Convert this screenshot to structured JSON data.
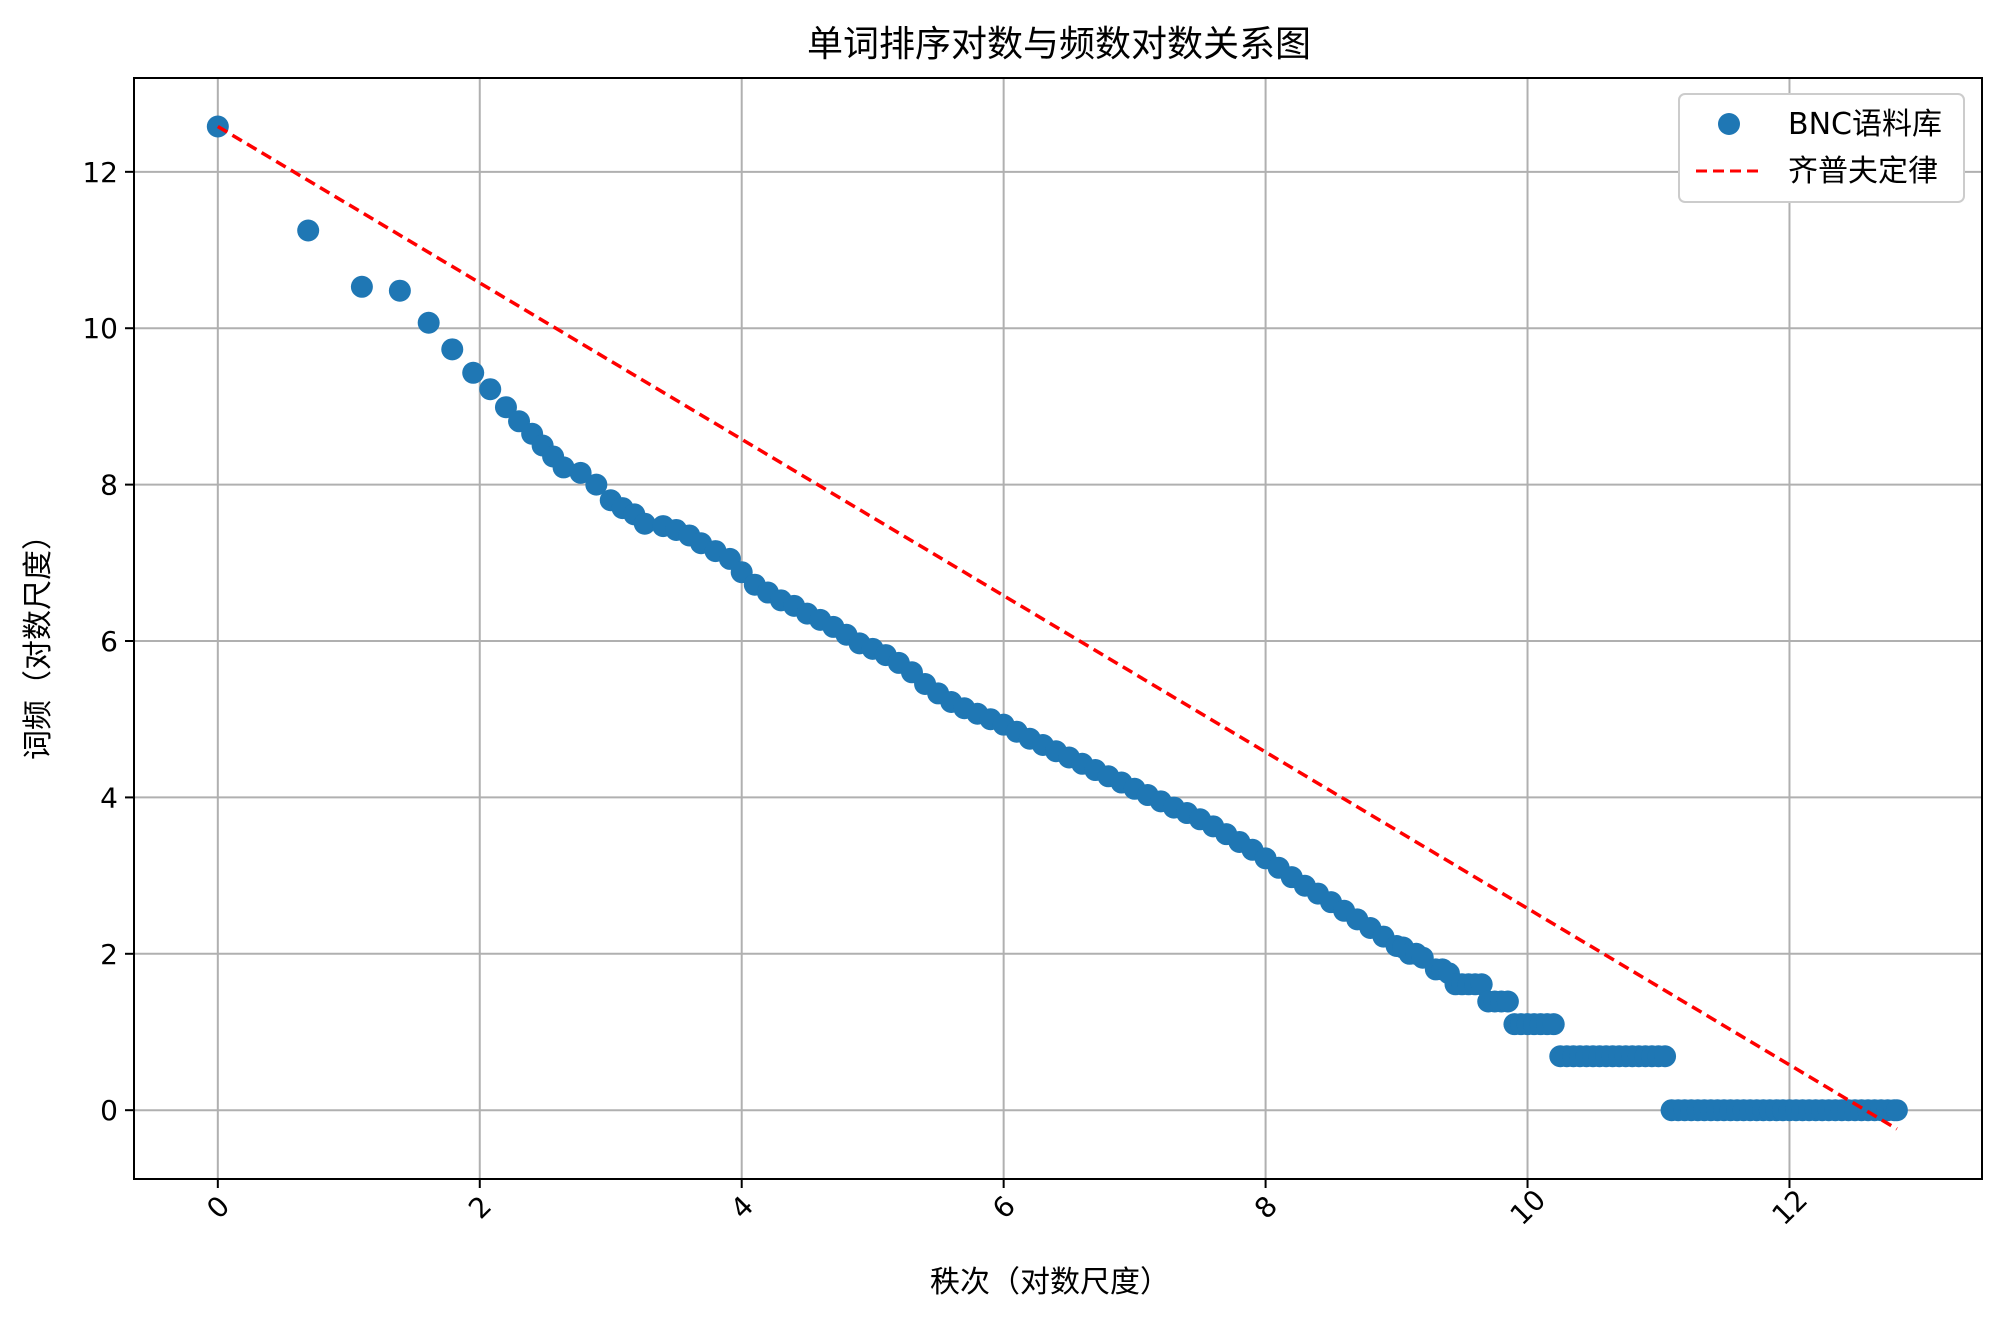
{
  "chart_data": {
    "type": "scatter",
    "title": "单词排序对数与频数对数关系图",
    "xlabel": "秩次（对数尺度）",
    "ylabel": "词频（对数尺度）",
    "xlim": [
      -0.64,
      13.47
    ],
    "ylim": [
      -0.88,
      13.2
    ],
    "x_ticks": [
      0,
      2,
      4,
      6,
      8,
      10,
      12
    ],
    "y_ticks": [
      0,
      2,
      4,
      6,
      8,
      10,
      12
    ],
    "x_tick_rotation": 45,
    "grid": true,
    "legend_position": "top-right",
    "series": [
      {
        "name": "BNC语料库",
        "kind": "scatter",
        "color": "#1f77b4",
        "points": [
          [
            0.0,
            12.58
          ],
          [
            0.69,
            11.25
          ],
          [
            1.1,
            10.53
          ],
          [
            1.39,
            10.48
          ],
          [
            1.61,
            10.07
          ],
          [
            1.79,
            9.73
          ],
          [
            1.95,
            9.43
          ],
          [
            2.08,
            9.22
          ],
          [
            2.2,
            8.99
          ],
          [
            2.3,
            8.81
          ],
          [
            2.4,
            8.65
          ],
          [
            2.48,
            8.5
          ],
          [
            2.56,
            8.36
          ],
          [
            2.64,
            8.22
          ],
          [
            2.77,
            8.15
          ],
          [
            2.89,
            8.0
          ],
          [
            3.0,
            7.8
          ],
          [
            3.09,
            7.7
          ],
          [
            3.18,
            7.62
          ],
          [
            3.26,
            7.5
          ],
          [
            3.4,
            7.47
          ],
          [
            3.5,
            7.42
          ],
          [
            3.6,
            7.35
          ],
          [
            3.69,
            7.25
          ],
          [
            3.8,
            7.15
          ],
          [
            3.91,
            7.05
          ],
          [
            4.0,
            6.88
          ],
          [
            4.1,
            6.72
          ],
          [
            4.2,
            6.62
          ],
          [
            4.3,
            6.52
          ],
          [
            4.4,
            6.45
          ],
          [
            4.5,
            6.35
          ],
          [
            4.6,
            6.27
          ],
          [
            4.7,
            6.18
          ],
          [
            4.8,
            6.08
          ],
          [
            4.9,
            5.97
          ],
          [
            5.0,
            5.9
          ],
          [
            5.1,
            5.82
          ],
          [
            5.2,
            5.72
          ],
          [
            5.3,
            5.6
          ],
          [
            5.4,
            5.45
          ],
          [
            5.5,
            5.33
          ],
          [
            5.6,
            5.22
          ],
          [
            5.7,
            5.14
          ],
          [
            5.8,
            5.07
          ],
          [
            5.9,
            5.0
          ],
          [
            6.0,
            4.93
          ],
          [
            6.1,
            4.84
          ],
          [
            6.2,
            4.75
          ],
          [
            6.3,
            4.67
          ],
          [
            6.4,
            4.59
          ],
          [
            6.5,
            4.51
          ],
          [
            6.6,
            4.43
          ],
          [
            6.7,
            4.35
          ],
          [
            6.8,
            4.27
          ],
          [
            6.9,
            4.19
          ],
          [
            7.0,
            4.11
          ],
          [
            7.1,
            4.03
          ],
          [
            7.2,
            3.95
          ],
          [
            7.3,
            3.87
          ],
          [
            7.4,
            3.8
          ],
          [
            7.5,
            3.72
          ],
          [
            7.6,
            3.63
          ],
          [
            7.7,
            3.53
          ],
          [
            7.8,
            3.43
          ],
          [
            7.9,
            3.33
          ],
          [
            8.0,
            3.22
          ],
          [
            8.1,
            3.1
          ],
          [
            8.2,
            2.98
          ],
          [
            8.3,
            2.87
          ],
          [
            8.4,
            2.77
          ],
          [
            8.5,
            2.66
          ],
          [
            8.6,
            2.55
          ],
          [
            8.7,
            2.44
          ],
          [
            8.8,
            2.33
          ],
          [
            8.9,
            2.22
          ],
          [
            9.0,
            2.1
          ],
          [
            9.05,
            2.08
          ],
          [
            9.1,
            2.0
          ],
          [
            9.15,
            2.0
          ],
          [
            9.2,
            1.95
          ],
          [
            9.3,
            1.8
          ],
          [
            9.35,
            1.8
          ],
          [
            9.4,
            1.75
          ],
          [
            9.45,
            1.61
          ],
          [
            9.5,
            1.61
          ],
          [
            9.55,
            1.61
          ],
          [
            9.6,
            1.61
          ],
          [
            9.65,
            1.61
          ],
          [
            9.7,
            1.39
          ],
          [
            9.75,
            1.39
          ],
          [
            9.8,
            1.39
          ],
          [
            9.85,
            1.39
          ],
          [
            9.9,
            1.1
          ],
          [
            9.95,
            1.1
          ],
          [
            10.0,
            1.1
          ],
          [
            10.05,
            1.1
          ],
          [
            10.1,
            1.1
          ],
          [
            10.15,
            1.1
          ],
          [
            10.2,
            1.1
          ],
          [
            10.25,
            0.69
          ],
          [
            10.3,
            0.69
          ],
          [
            10.35,
            0.69
          ],
          [
            10.4,
            0.69
          ],
          [
            10.45,
            0.69
          ],
          [
            10.5,
            0.69
          ],
          [
            10.55,
            0.69
          ],
          [
            10.6,
            0.69
          ],
          [
            10.65,
            0.69
          ],
          [
            10.7,
            0.69
          ],
          [
            10.75,
            0.69
          ],
          [
            10.8,
            0.69
          ],
          [
            10.85,
            0.69
          ],
          [
            10.9,
            0.69
          ],
          [
            10.95,
            0.69
          ],
          [
            11.0,
            0.69
          ],
          [
            11.05,
            0.69
          ],
          [
            11.1,
            0.0
          ],
          [
            11.15,
            0.0
          ],
          [
            11.2,
            0.0
          ],
          [
            11.25,
            0.0
          ],
          [
            11.3,
            0.0
          ],
          [
            11.35,
            0.0
          ],
          [
            11.4,
            0.0
          ],
          [
            11.45,
            0.0
          ],
          [
            11.5,
            0.0
          ],
          [
            11.55,
            0.0
          ],
          [
            11.6,
            0.0
          ],
          [
            11.65,
            0.0
          ],
          [
            11.7,
            0.0
          ],
          [
            11.75,
            0.0
          ],
          [
            11.8,
            0.0
          ],
          [
            11.85,
            0.0
          ],
          [
            11.9,
            0.0
          ],
          [
            11.95,
            0.0
          ],
          [
            12.0,
            0.0
          ],
          [
            12.05,
            0.0
          ],
          [
            12.1,
            0.0
          ],
          [
            12.15,
            0.0
          ],
          [
            12.2,
            0.0
          ],
          [
            12.25,
            0.0
          ],
          [
            12.3,
            0.0
          ],
          [
            12.35,
            0.0
          ],
          [
            12.4,
            0.0
          ],
          [
            12.45,
            0.0
          ],
          [
            12.5,
            0.0
          ],
          [
            12.55,
            0.0
          ],
          [
            12.6,
            0.0
          ],
          [
            12.65,
            0.0
          ],
          [
            12.7,
            0.0
          ],
          [
            12.75,
            0.0
          ],
          [
            12.8,
            0.0
          ],
          [
            12.82,
            0.0
          ]
        ]
      },
      {
        "name": "齐普夫定律",
        "kind": "line",
        "style": "dashed",
        "color": "#ff0000",
        "points": [
          [
            0.0,
            12.58
          ],
          [
            12.82,
            -0.24
          ]
        ]
      }
    ]
  }
}
